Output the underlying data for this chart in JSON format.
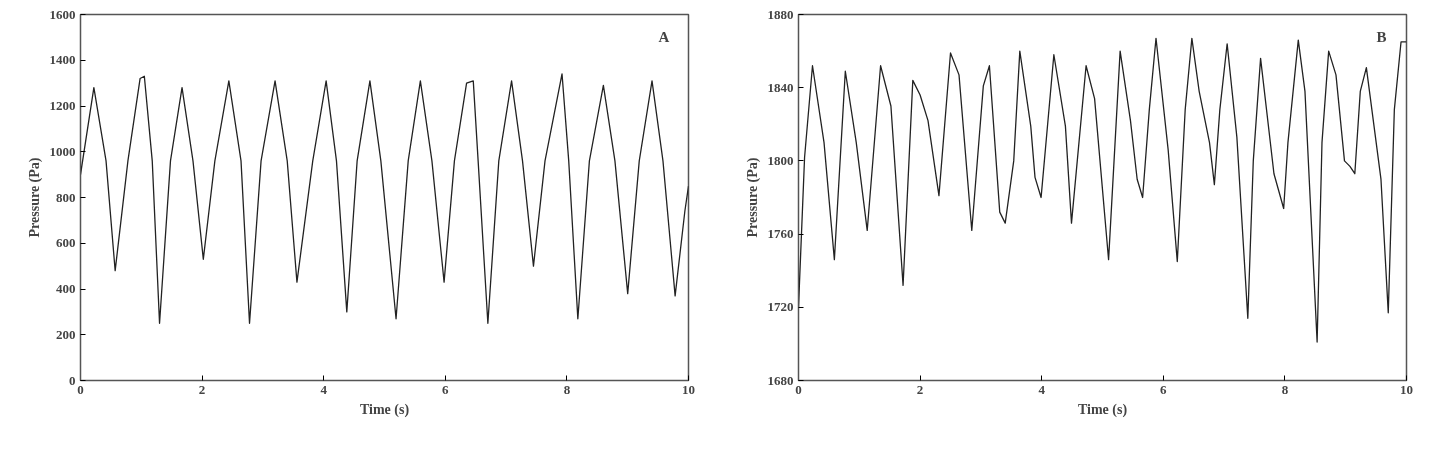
{
  "chart_data": [
    {
      "type": "line",
      "xlabel": "Time (s)",
      "ylabel": "Pressure (Pa)",
      "annotations": [
        "A"
      ],
      "xlim": [
        0,
        10
      ],
      "ylim": [
        0,
        1600
      ],
      "xticks": [
        0,
        2,
        4,
        6,
        8,
        10
      ],
      "yticks": [
        0,
        200,
        400,
        600,
        800,
        1000,
        1200,
        1400,
        1600
      ],
      "x": [
        0,
        0.22,
        0.42,
        0.57,
        0.78,
        0.98,
        1.05,
        1.18,
        1.3,
        1.48,
        1.67,
        1.85,
        2.02,
        2.21,
        2.44,
        2.64,
        2.78,
        2.97,
        3.2,
        3.4,
        3.56,
        3.82,
        4.04,
        4.21,
        4.38,
        4.55,
        4.76,
        4.94,
        5.19,
        5.39,
        5.59,
        5.78,
        5.98,
        6.15,
        6.35,
        6.46,
        6.54,
        6.7,
        6.88,
        7.09,
        7.27,
        7.45,
        7.64,
        7.92,
        8.03,
        8.18,
        8.37,
        8.6,
        8.79,
        9.0,
        9.19,
        9.4,
        9.58,
        9.78,
        9.94,
        10
      ],
      "series": [
        {
          "color": "#222222",
          "values": [
            900,
            1280,
            960,
            480,
            960,
            1320,
            1330,
            960,
            250,
            960,
            1280,
            960,
            530,
            960,
            1310,
            960,
            250,
            960,
            1310,
            960,
            430,
            960,
            1310,
            960,
            300,
            960,
            1310,
            960,
            270,
            960,
            1310,
            960,
            430,
            960,
            1300,
            1310,
            960,
            250,
            960,
            1310,
            960,
            500,
            960,
            1340,
            960,
            270,
            960,
            1290,
            960,
            380,
            960,
            1310,
            960,
            370,
            740,
            850
          ]
        }
      ]
    },
    {
      "type": "line",
      "xlabel": "Time (s)",
      "ylabel": "Pressure (Pa)",
      "annotations": [
        "B"
      ],
      "xlim": [
        0,
        10
      ],
      "ylim": [
        1680,
        1880
      ],
      "xticks": [
        0,
        2,
        4,
        6,
        8,
        10
      ],
      "yticks": [
        1680,
        1720,
        1760,
        1800,
        1840,
        1880
      ],
      "x": [
        0,
        0.1,
        0.23,
        0.42,
        0.59,
        0.77,
        0.95,
        1.13,
        1.35,
        1.52,
        1.72,
        1.88,
        2.0,
        2.13,
        2.31,
        2.5,
        2.64,
        2.85,
        3.04,
        3.14,
        3.31,
        3.4,
        3.54,
        3.64,
        3.82,
        3.89,
        3.99,
        4.2,
        4.39,
        4.49,
        4.73,
        4.87,
        5.1,
        5.29,
        5.46,
        5.57,
        5.66,
        5.77,
        5.88,
        6.08,
        6.23,
        6.36,
        6.47,
        6.59,
        6.76,
        6.84,
        6.93,
        7.05,
        7.21,
        7.39,
        7.48,
        7.6,
        7.82,
        7.98,
        8.05,
        8.22,
        8.33,
        8.53,
        8.61,
        8.72,
        8.84,
        8.98,
        9.07,
        9.15,
        9.24,
        9.34,
        9.58,
        9.7,
        9.8,
        9.91,
        10
      ],
      "series": [
        {
          "color": "#222222",
          "values": [
            1720,
            1802,
            1852,
            1810,
            1746,
            1849,
            1810,
            1762,
            1852,
            1830,
            1732,
            1844,
            1836,
            1822,
            1781,
            1859,
            1847,
            1762,
            1841,
            1852,
            1772,
            1766,
            1800,
            1860,
            1819,
            1791,
            1780,
            1858,
            1819,
            1766,
            1852,
            1834,
            1746,
            1860,
            1822,
            1790,
            1780,
            1828,
            1867,
            1806,
            1745,
            1828,
            1867,
            1838,
            1810,
            1787,
            1828,
            1864,
            1813,
            1714,
            1800,
            1856,
            1793,
            1774,
            1810,
            1866,
            1838,
            1701,
            1810,
            1860,
            1847,
            1800,
            1797,
            1793,
            1838,
            1851,
            1790,
            1717,
            1828,
            1865,
            1865
          ]
        }
      ]
    }
  ]
}
